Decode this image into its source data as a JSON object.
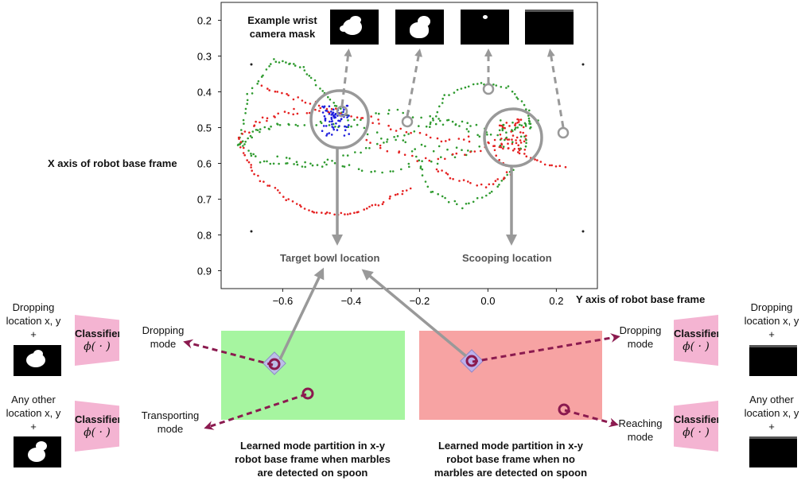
{
  "chart_data": {
    "type": "scatter",
    "title": "",
    "xlabel": "Y axis of robot base frame",
    "ylabel": "X axis of robot base frame",
    "xlim": [
      -0.78,
      0.32
    ],
    "ylim": [
      0.95,
      0.15
    ],
    "x_ticks": [
      "−0.6",
      "−0.4",
      "−0.2",
      "0.0",
      "0.2"
    ],
    "y_ticks": [
      "0.2",
      "0.3",
      "0.4",
      "0.5",
      "0.6",
      "0.7",
      "0.8",
      "0.9"
    ],
    "series": [
      {
        "color": "#2e9a2e",
        "points": "green trajectory points"
      },
      {
        "color": "#e52121",
        "points": "red trajectory points"
      },
      {
        "color": "#1f1fdd",
        "points": "blue dropping cluster"
      }
    ],
    "annotations": {
      "bowl": "Target bowl location",
      "scoop": "Scooping location",
      "mask_caption_1": "Example wrist",
      "mask_caption_2": "camera mask"
    }
  },
  "left_panel": {
    "caption_1": "Learned mode partition in x-y",
    "caption_2": "robot base frame when marbles",
    "caption_3": "are detected on spoon",
    "color": "#a6f5a0"
  },
  "right_panel": {
    "caption_1": "Learned mode partition in x-y",
    "caption_2": "robot base frame when no",
    "caption_3": "marbles are detected on spoon",
    "color": "#f7a3a3"
  },
  "modes": {
    "dropping_left": [
      "Dropping",
      "mode"
    ],
    "transporting": [
      "Transporting",
      "mode"
    ],
    "dropping_right": [
      "Dropping",
      "mode"
    ],
    "reaching": [
      "Reaching",
      "mode"
    ]
  },
  "classifier": {
    "label": "Classifier",
    "symbol": "ϕ( · )"
  },
  "inputs": {
    "tl": [
      "Dropping",
      "location x, y",
      "+"
    ],
    "bl": [
      "Any other",
      "location x, y",
      "+"
    ],
    "tr": [
      "Dropping",
      "location x, y",
      "+"
    ],
    "br": [
      "Any other",
      "location x, y",
      "+"
    ]
  },
  "colors": {
    "accent": "#8b1a4f",
    "arrow": "#999999",
    "classifier": "#f4b4d2"
  }
}
